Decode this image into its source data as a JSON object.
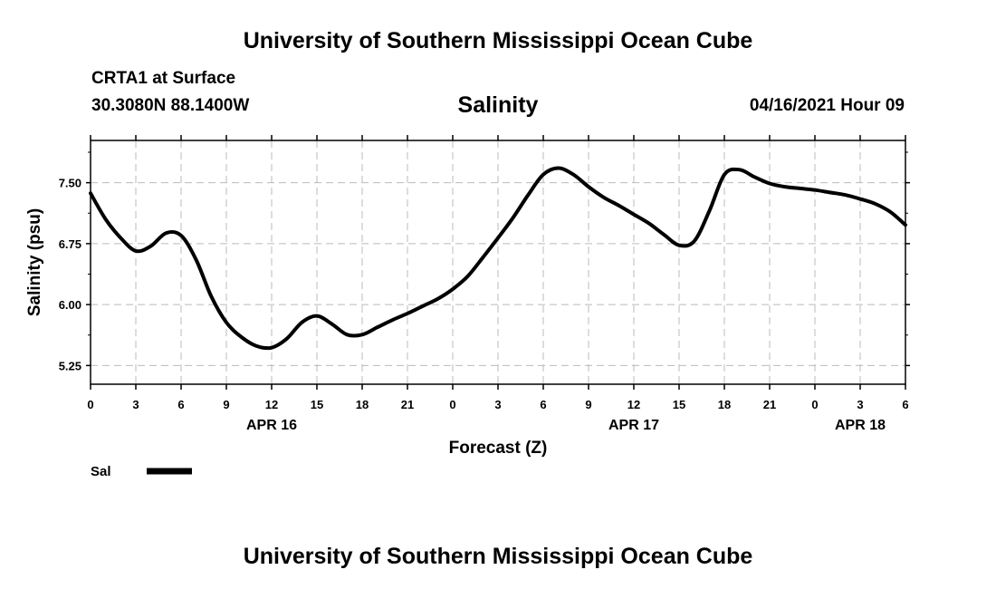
{
  "header": {
    "top_title": "University of Southern Mississippi Ocean Cube",
    "station": "CRTA1 at Surface",
    "coords": "30.3080N  88.1400W",
    "datetime": "04/16/2021 Hour 09"
  },
  "footer": {
    "bottom_title": "University of Southern Mississippi Ocean Cube"
  },
  "legend": {
    "label": "Sal",
    "color": "#000000"
  },
  "chart_data": {
    "type": "line",
    "title": "Salinity",
    "xlabel": "Forecast (Z)",
    "ylabel": "Salinity (psu)",
    "x_unit": "forecast hours from APR 16 00Z",
    "xlim": [
      0,
      54
    ],
    "ylim": [
      5.02,
      8.02
    ],
    "grid": true,
    "legend_position": "bottom-left",
    "y_ticks": [
      5.25,
      6.0,
      6.75,
      7.5
    ],
    "y_tick_labels": [
      "5.25",
      "6.00",
      "6.75",
      "7.50"
    ],
    "x_ticks": [
      0,
      3,
      6,
      9,
      12,
      15,
      18,
      21,
      24,
      27,
      30,
      33,
      36,
      39,
      42,
      45,
      48,
      51,
      54
    ],
    "x_tick_labels": [
      "0",
      "3",
      "6",
      "9",
      "12",
      "15",
      "18",
      "21",
      "0",
      "3",
      "6",
      "9",
      "12",
      "15",
      "18",
      "21",
      "0",
      "3",
      "6"
    ],
    "date_labels": [
      {
        "x": 12,
        "text": "APR 16"
      },
      {
        "x": 36,
        "text": "APR 17"
      },
      {
        "x": 51,
        "text": "APR 18"
      }
    ],
    "series": [
      {
        "name": "Sal",
        "x": [
          0,
          1,
          2,
          3,
          4,
          5,
          6,
          7,
          8,
          9,
          10,
          11,
          12,
          13,
          14,
          15,
          16,
          17,
          18,
          19,
          20,
          21,
          22,
          23,
          24,
          25,
          26,
          27,
          28,
          29,
          30,
          31,
          32,
          33,
          34,
          35,
          36,
          37,
          38,
          39,
          40,
          41,
          42,
          43,
          44,
          45,
          46,
          47,
          48,
          49,
          50,
          51,
          52,
          53,
          54
        ],
        "values": [
          7.37,
          7.05,
          6.82,
          6.66,
          6.72,
          6.88,
          6.85,
          6.55,
          6.1,
          5.78,
          5.6,
          5.49,
          5.47,
          5.58,
          5.78,
          5.86,
          5.76,
          5.63,
          5.63,
          5.72,
          5.81,
          5.89,
          5.98,
          6.07,
          6.19,
          6.35,
          6.58,
          6.82,
          7.07,
          7.35,
          7.6,
          7.68,
          7.6,
          7.45,
          7.32,
          7.22,
          7.11,
          7.0,
          6.86,
          6.73,
          6.78,
          7.15,
          7.6,
          7.66,
          7.57,
          7.49,
          7.45,
          7.43,
          7.41,
          7.38,
          7.35,
          7.3,
          7.24,
          7.14,
          6.98
        ]
      }
    ]
  }
}
